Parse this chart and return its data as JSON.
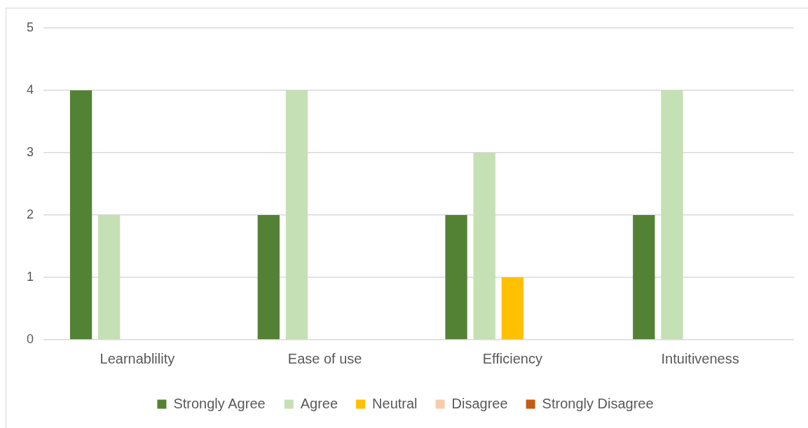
{
  "chart_data": {
    "type": "bar",
    "categories": [
      "Learnablility",
      "Ease of use",
      "Efficiency",
      "Intuitiveness"
    ],
    "series": [
      {
        "name": "Strongly Agree",
        "color": "#548235",
        "values": [
          4,
          2,
          2,
          2
        ]
      },
      {
        "name": "Agree",
        "color": "#c5e0b4",
        "values": [
          2,
          4,
          3,
          4
        ]
      },
      {
        "name": "Neutral",
        "color": "#ffc000",
        "values": [
          0,
          0,
          1,
          0
        ]
      },
      {
        "name": "Disagree",
        "color": "#f8cbad",
        "values": [
          0,
          0,
          0,
          0
        ]
      },
      {
        "name": "Strongly Disagree",
        "color": "#c55a11",
        "values": [
          0,
          0,
          0,
          0
        ]
      }
    ],
    "ylim": [
      0,
      5
    ],
    "yticks": [
      0,
      1,
      2,
      3,
      4,
      5
    ],
    "grid": "y",
    "legend": "bottom"
  }
}
